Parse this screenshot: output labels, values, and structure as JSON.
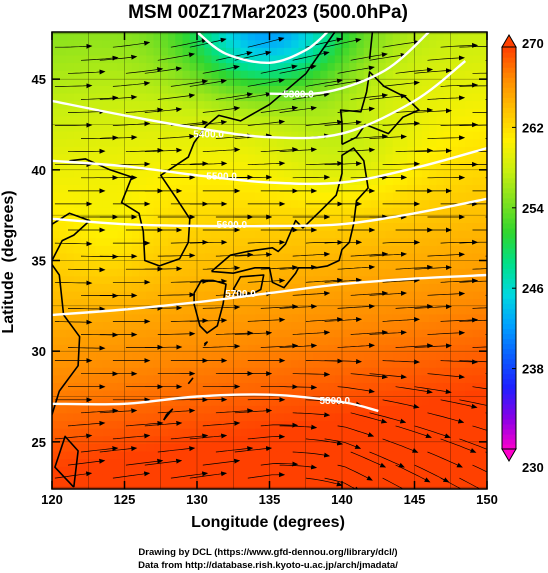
{
  "chart_data": {
    "type": "heatmap",
    "title": "MSM 00Z17Mar2023 (500.0hPa)",
    "xlabel": "Longitude (degrees)",
    "ylabel": "Latitude  (degrees)",
    "xlim": [
      120,
      150
    ],
    "ylim": [
      22.4,
      47.6
    ],
    "xticks": [
      120,
      125,
      130,
      135,
      140,
      145,
      150
    ],
    "yticks": [
      25,
      30,
      35,
      40,
      45
    ],
    "colorbar": {
      "min": 230,
      "max": 270,
      "ticks": [
        230,
        238,
        246,
        254,
        262,
        270
      ],
      "colors": [
        "#ff00cc",
        "#8a00e6",
        "#1f1fff",
        "#0b5dff",
        "#00a0ff",
        "#00d8e0",
        "#00e08a",
        "#2fd62f",
        "#7ee020",
        "#c8ef10",
        "#fff000",
        "#ffc000",
        "#ff8a00",
        "#ff4000"
      ]
    },
    "contours": [
      {
        "label": "5300.0",
        "label_lon": 137.0,
        "label_lat": 44.2,
        "points": [
          [
            135.0,
            44.2
          ],
          [
            139.0,
            44.3
          ],
          [
            143.0,
            45.5
          ],
          [
            146.0,
            47.6
          ]
        ]
      },
      {
        "label": "5400.0",
        "label_lon": 130.8,
        "label_lat": 42.0,
        "points": [
          [
            120.0,
            43.8
          ],
          [
            125.0,
            43.0
          ],
          [
            130.0,
            42.3
          ],
          [
            135.0,
            41.8
          ],
          [
            140.0,
            42.0
          ],
          [
            145.0,
            43.8
          ],
          [
            148.5,
            46.0
          ]
        ]
      },
      {
        "label": "5500.0",
        "label_lon": 131.7,
        "label_lat": 39.7,
        "points": [
          [
            120.0,
            40.5
          ],
          [
            125.0,
            40.2
          ],
          [
            130.0,
            39.7
          ],
          [
            135.0,
            39.3
          ],
          [
            140.0,
            39.3
          ],
          [
            145.0,
            40.1
          ],
          [
            150.0,
            41.2
          ]
        ]
      },
      {
        "label": "5600.0",
        "label_lon": 132.4,
        "label_lat": 37.0,
        "points": [
          [
            120.0,
            37.3
          ],
          [
            125.0,
            37.0
          ],
          [
            130.0,
            36.9
          ],
          [
            135.0,
            36.9
          ],
          [
            140.0,
            37.0
          ],
          [
            145.0,
            37.6
          ],
          [
            150.0,
            38.4
          ]
        ]
      },
      {
        "label": "5700.0",
        "label_lon": 133.0,
        "label_lat": 33.2,
        "points": [
          [
            120.0,
            32.0
          ],
          [
            125.0,
            32.3
          ],
          [
            130.0,
            32.7
          ],
          [
            135.0,
            33.2
          ],
          [
            140.0,
            33.7
          ],
          [
            145.0,
            34.0
          ],
          [
            150.0,
            34.2
          ]
        ]
      },
      {
        "label": "5800.0",
        "label_lon": 139.5,
        "label_lat": 27.3,
        "points": [
          [
            120.0,
            27.1
          ],
          [
            125.0,
            27.1
          ],
          [
            130.0,
            27.5
          ],
          [
            135.0,
            27.6
          ],
          [
            140.0,
            27.2
          ],
          [
            142.5,
            26.7
          ]
        ]
      },
      {
        "label": "",
        "label_lon": 0,
        "label_lat": 0,
        "points": [
          [
            130.0,
            47.6
          ],
          [
            132.0,
            46.4
          ],
          [
            135.0,
            45.9
          ],
          [
            137.5,
            46.6
          ],
          [
            139.0,
            47.6
          ]
        ]
      }
    ]
  },
  "footer": {
    "line1": "Drawing by DCL (https://www.gfd-dennou.org/library/dcl/)",
    "line2": "Data from http://database.rish.kyoto-u.ac.jp/arch/jmadata/"
  }
}
